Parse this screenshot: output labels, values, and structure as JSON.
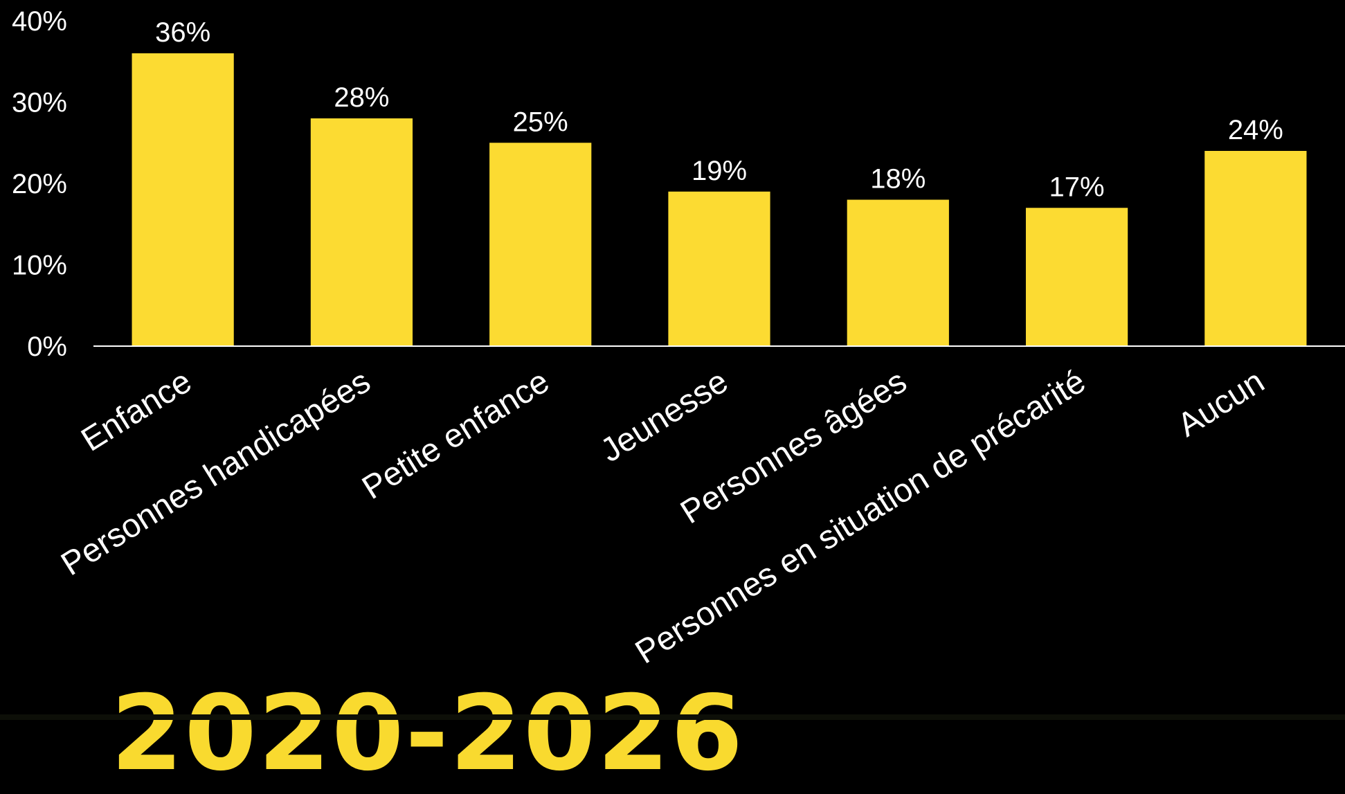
{
  "chart_data": {
    "type": "bar",
    "categories": [
      "Enfance",
      "Personnes handicapées",
      "Petite enfance",
      "Jeunesse",
      "Personnes âgées",
      "Personnes en situation de précarité",
      "Aucun"
    ],
    "values": [
      36,
      28,
      25,
      19,
      18,
      17,
      24
    ],
    "data_labels": [
      "36%",
      "28%",
      "25%",
      "19%",
      "18%",
      "17%",
      "24%"
    ],
    "y_ticks": [
      "0%",
      "10%",
      "20%",
      "30%",
      "40%"
    ],
    "ylim": [
      0,
      40
    ],
    "grid": false,
    "bar_color": "#fcdb32",
    "axis_color": "#ffffff"
  },
  "background_text": "2020-2026"
}
